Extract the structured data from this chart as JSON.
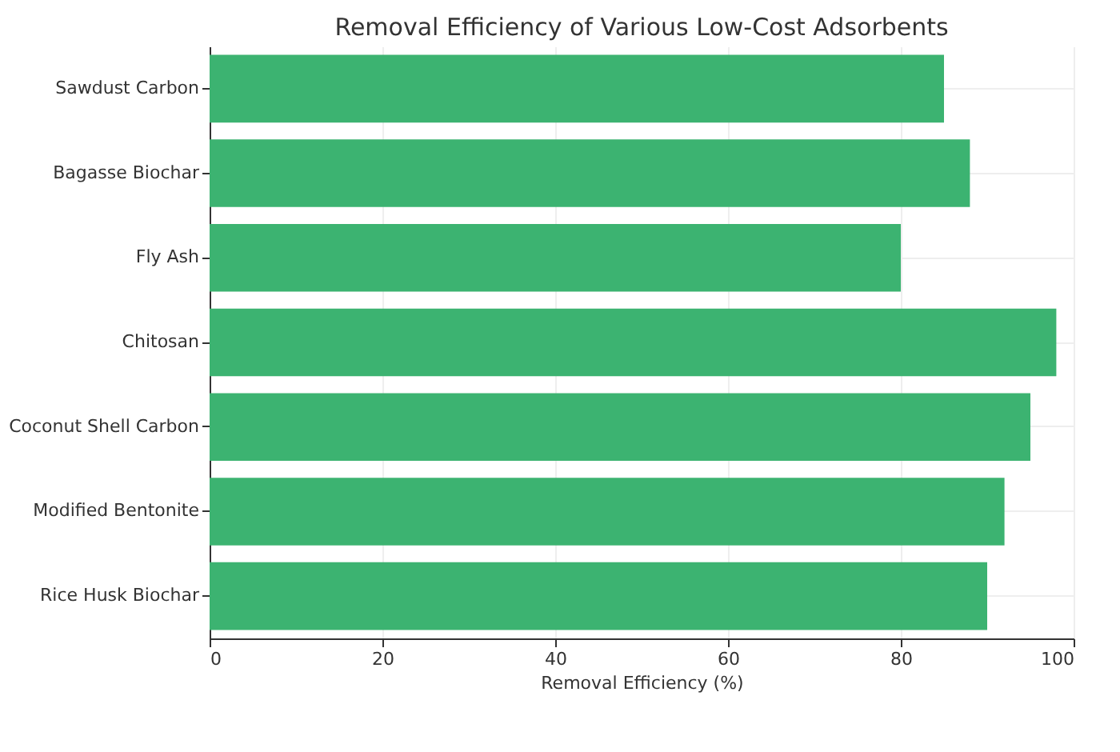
{
  "chart_data": {
    "type": "bar",
    "orientation": "horizontal",
    "title": "Removal Efficiency of Various Low-Cost Adsorbents",
    "xlabel": "Removal Efficiency (%)",
    "categories": [
      "Sawdust Carbon",
      "Bagasse Biochar",
      "Fly Ash",
      "Chitosan",
      "Coconut Shell Carbon",
      "Modified Bentonite",
      "Rice Husk Biochar"
    ],
    "values": [
      85,
      88,
      80,
      98,
      95,
      92,
      90
    ],
    "color": "#3cb371",
    "xlim": [
      0,
      100
    ],
    "xticks": [
      0,
      20,
      40,
      60,
      80,
      100
    ],
    "grid": true
  }
}
